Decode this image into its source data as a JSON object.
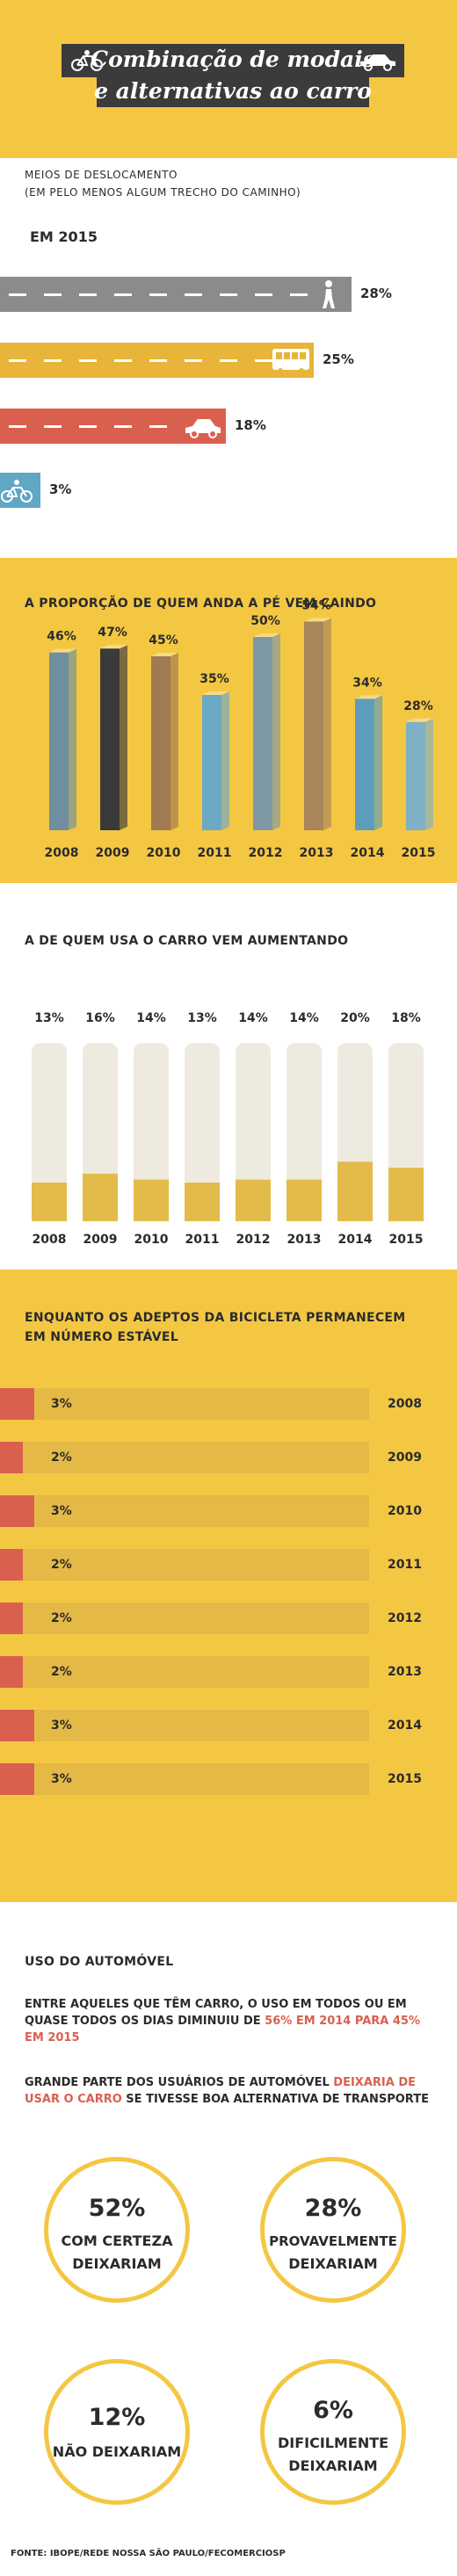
{
  "header": {
    "line1": "Combinação de modais",
    "line2": "e alternativas ao carro"
  },
  "modes": {
    "heading_line1": "MEIOS DE DESLOCAMENTO",
    "heading_line2": "(EM PELO MENOS ALGUM TRECHO DO CAMINHO)",
    "year_label": "EM 2015",
    "items": [
      {
        "mode": "a pé",
        "icon": "pedestrian-icon",
        "value": 28,
        "label": "28%",
        "color": "#8b8b8b"
      },
      {
        "mode": "ônibus",
        "icon": "bus-icon",
        "value": 25,
        "label": "25%",
        "color": "#e8b43a"
      },
      {
        "mode": "carro",
        "icon": "car-icon",
        "value": 18,
        "label": "18%",
        "color": "#d9604f"
      },
      {
        "mode": "bicicleta",
        "icon": "bicycle-icon",
        "value": 3,
        "label": "3%",
        "color": "#5fa7c4"
      }
    ]
  },
  "chart_data": [
    {
      "type": "bar",
      "title": "A PROPORÇÃO DE QUEM ANDA A PÉ VEM CAINDO",
      "categories": [
        "2008",
        "2009",
        "2010",
        "2011",
        "2012",
        "2013",
        "2014",
        "2015"
      ],
      "values": [
        46,
        47,
        45,
        35,
        50,
        54,
        34,
        28
      ],
      "labels": [
        "46%",
        "47%",
        "45%",
        "35%",
        "50%",
        "54%",
        "34%",
        "28%"
      ],
      "colors": [
        "#6f8fa0",
        "#3a3a3a",
        "#a07a52",
        "#6da9c4",
        "#7f98a6",
        "#a8855a",
        "#5e9cbc",
        "#7fb0c6"
      ]
    },
    {
      "type": "bar",
      "title": "A DE QUEM USA O CARRO VEM AUMENTANDO",
      "categories": [
        "2008",
        "2009",
        "2010",
        "2011",
        "2012",
        "2013",
        "2014",
        "2015"
      ],
      "values": [
        13,
        16,
        14,
        13,
        14,
        14,
        20,
        18
      ],
      "labels": [
        "13%",
        "16%",
        "14%",
        "13%",
        "14%",
        "14%",
        "20%",
        "18%"
      ],
      "ylim": [
        0,
        60
      ]
    },
    {
      "type": "bar",
      "title": "ENQUANTO OS ADEPTOS DA BICICLETA PERMANECEM EM NÚMERO ESTÁVEL",
      "categories": [
        "2008",
        "2009",
        "2010",
        "2011",
        "2012",
        "2013",
        "2014",
        "2015"
      ],
      "values": [
        3,
        2,
        3,
        2,
        2,
        2,
        3,
        3
      ],
      "labels": [
        "3%",
        "2%",
        "3%",
        "2%",
        "2%",
        "2%",
        "3%",
        "3%"
      ]
    }
  ],
  "auto": {
    "title": "USO DO AUTOMÓVEL",
    "para1_a": "ENTRE AQUELES QUE TÊM CARRO, O USO EM TODOS OU EM QUASE TODOS OS DIAS DIMINUIU DE ",
    "para1_b": "56% EM 2014 PARA 45% EM 2015",
    "para2_a": "GRANDE PARTE DOS USUÁRIOS DE AUTOMÓVEL ",
    "para2_b": "DEIXARIA DE USAR O CARRO",
    "para2_c": " SE TIVESSE BOA ALTERNATIVA DE TRANSPORTE",
    "circles": [
      {
        "pct": "52%",
        "line1": "COM CERTEZA",
        "line2": "DEIXARIAM"
      },
      {
        "pct": "28%",
        "line1": "PROVAVELMENTE",
        "line2": "DEIXARIAM"
      },
      {
        "pct": "12%",
        "line1": "NÃO DEIXARIAM",
        "line2": ""
      },
      {
        "pct": "6%",
        "line1": "DIFICILMENTE",
        "line2": "DEIXARIAM"
      }
    ],
    "source": "FONTE: IBOPE/REDE NOSSA SÃO PAULO/FECOMERCIOSP"
  }
}
